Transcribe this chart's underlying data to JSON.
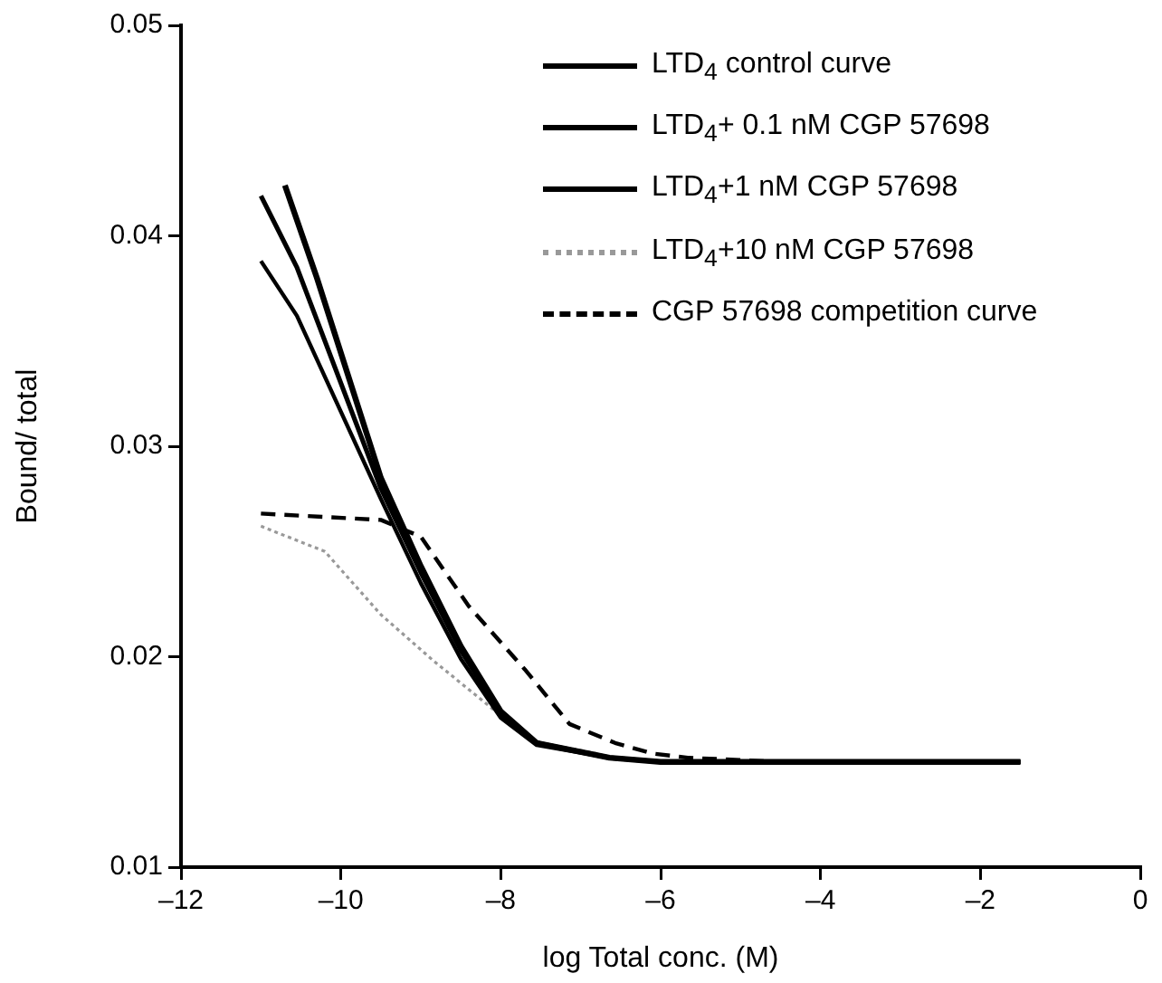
{
  "chart_data": {
    "type": "line",
    "xlabel": "log Total conc. (M)",
    "ylabel": "Bound/ total",
    "xlim": [
      -12,
      0
    ],
    "xticks": [
      {
        "value": -12,
        "label": "–12"
      },
      {
        "value": -10,
        "label": "–10"
      },
      {
        "value": -8,
        "label": "–8"
      },
      {
        "value": -6,
        "label": "–6"
      },
      {
        "value": -4,
        "label": "–4"
      },
      {
        "value": -2,
        "label": "–2"
      },
      0
    ],
    "ylim": [
      0.01,
      0.05
    ],
    "yticks": [
      {
        "value": 0.01,
        "label": "0.01"
      },
      {
        "value": 0.02,
        "label": "0.02"
      },
      {
        "value": 0.03,
        "label": "0.03"
      },
      {
        "value": 0.04,
        "label": "0.04"
      },
      {
        "value": 0.05,
        "label": "0.05"
      }
    ],
    "grid": false,
    "legend": "top right",
    "marker": "none",
    "series": [
      {
        "name": "LTD$_{4}$ control curve",
        "color": "#000000",
        "line_style": "solid",
        "x": [
          -10.7,
          -10.3,
          -9.5,
          -9,
          -8.5,
          -8,
          -7.55,
          -6.64,
          -6,
          -1.5
        ],
        "values": [
          0.0424,
          0.038,
          0.0285,
          0.0243,
          0.0205,
          0.0174,
          0.0159,
          0.0152,
          0.015,
          0.015
        ]
      },
      {
        "name": "LTD$_{4}$+ 0.1 nM CGP 57698",
        "color": "#000000",
        "line_style": "solid",
        "x": [
          -11,
          -10.55,
          -9.5,
          -9,
          -8.5,
          -8,
          -7.55,
          -6.64,
          -6,
          -1.5
        ],
        "values": [
          0.0419,
          0.0385,
          0.028,
          0.024,
          0.0203,
          0.0173,
          0.0159,
          0.0152,
          0.015,
          0.015
        ]
      },
      {
        "name": "LTD$_{4}$+1 nM CGP 57698",
        "color": "#000000",
        "line_style": "solid",
        "x": [
          -11,
          -10.55,
          -9.5,
          -9,
          -8.5,
          -8,
          -7.55,
          -6.64,
          -6,
          -1.5
        ],
        "values": [
          0.0388,
          0.0362,
          0.0275,
          0.0235,
          0.0199,
          0.0171,
          0.0158,
          0.0152,
          0.015,
          0.015
        ]
      },
      {
        "name": "LTD$_{4}$+10 nM CGP 57698",
        "color": "#999999",
        "line_style": "dotted",
        "x": [
          -11,
          -10.2,
          -9.5,
          -8.84,
          -8.16,
          -7.7,
          -7.5,
          -6.8
        ],
        "values": [
          0.0262,
          0.025,
          0.022,
          0.0198,
          0.0177,
          0.0163,
          0.0159,
          0.0154
        ]
      },
      {
        "name": "CGP 57698 competition curve",
        "color": "#000000",
        "line_style": "dashed",
        "x": [
          -11,
          -9.5,
          -9,
          -8.4,
          -7.7,
          -7.14,
          -6.57,
          -6.1,
          -5.66,
          -4.5,
          -1.5
        ],
        "values": [
          0.0268,
          0.0265,
          0.0257,
          0.0224,
          0.0194,
          0.0168,
          0.0159,
          0.0154,
          0.0152,
          0.015,
          0.015
        ]
      }
    ]
  }
}
